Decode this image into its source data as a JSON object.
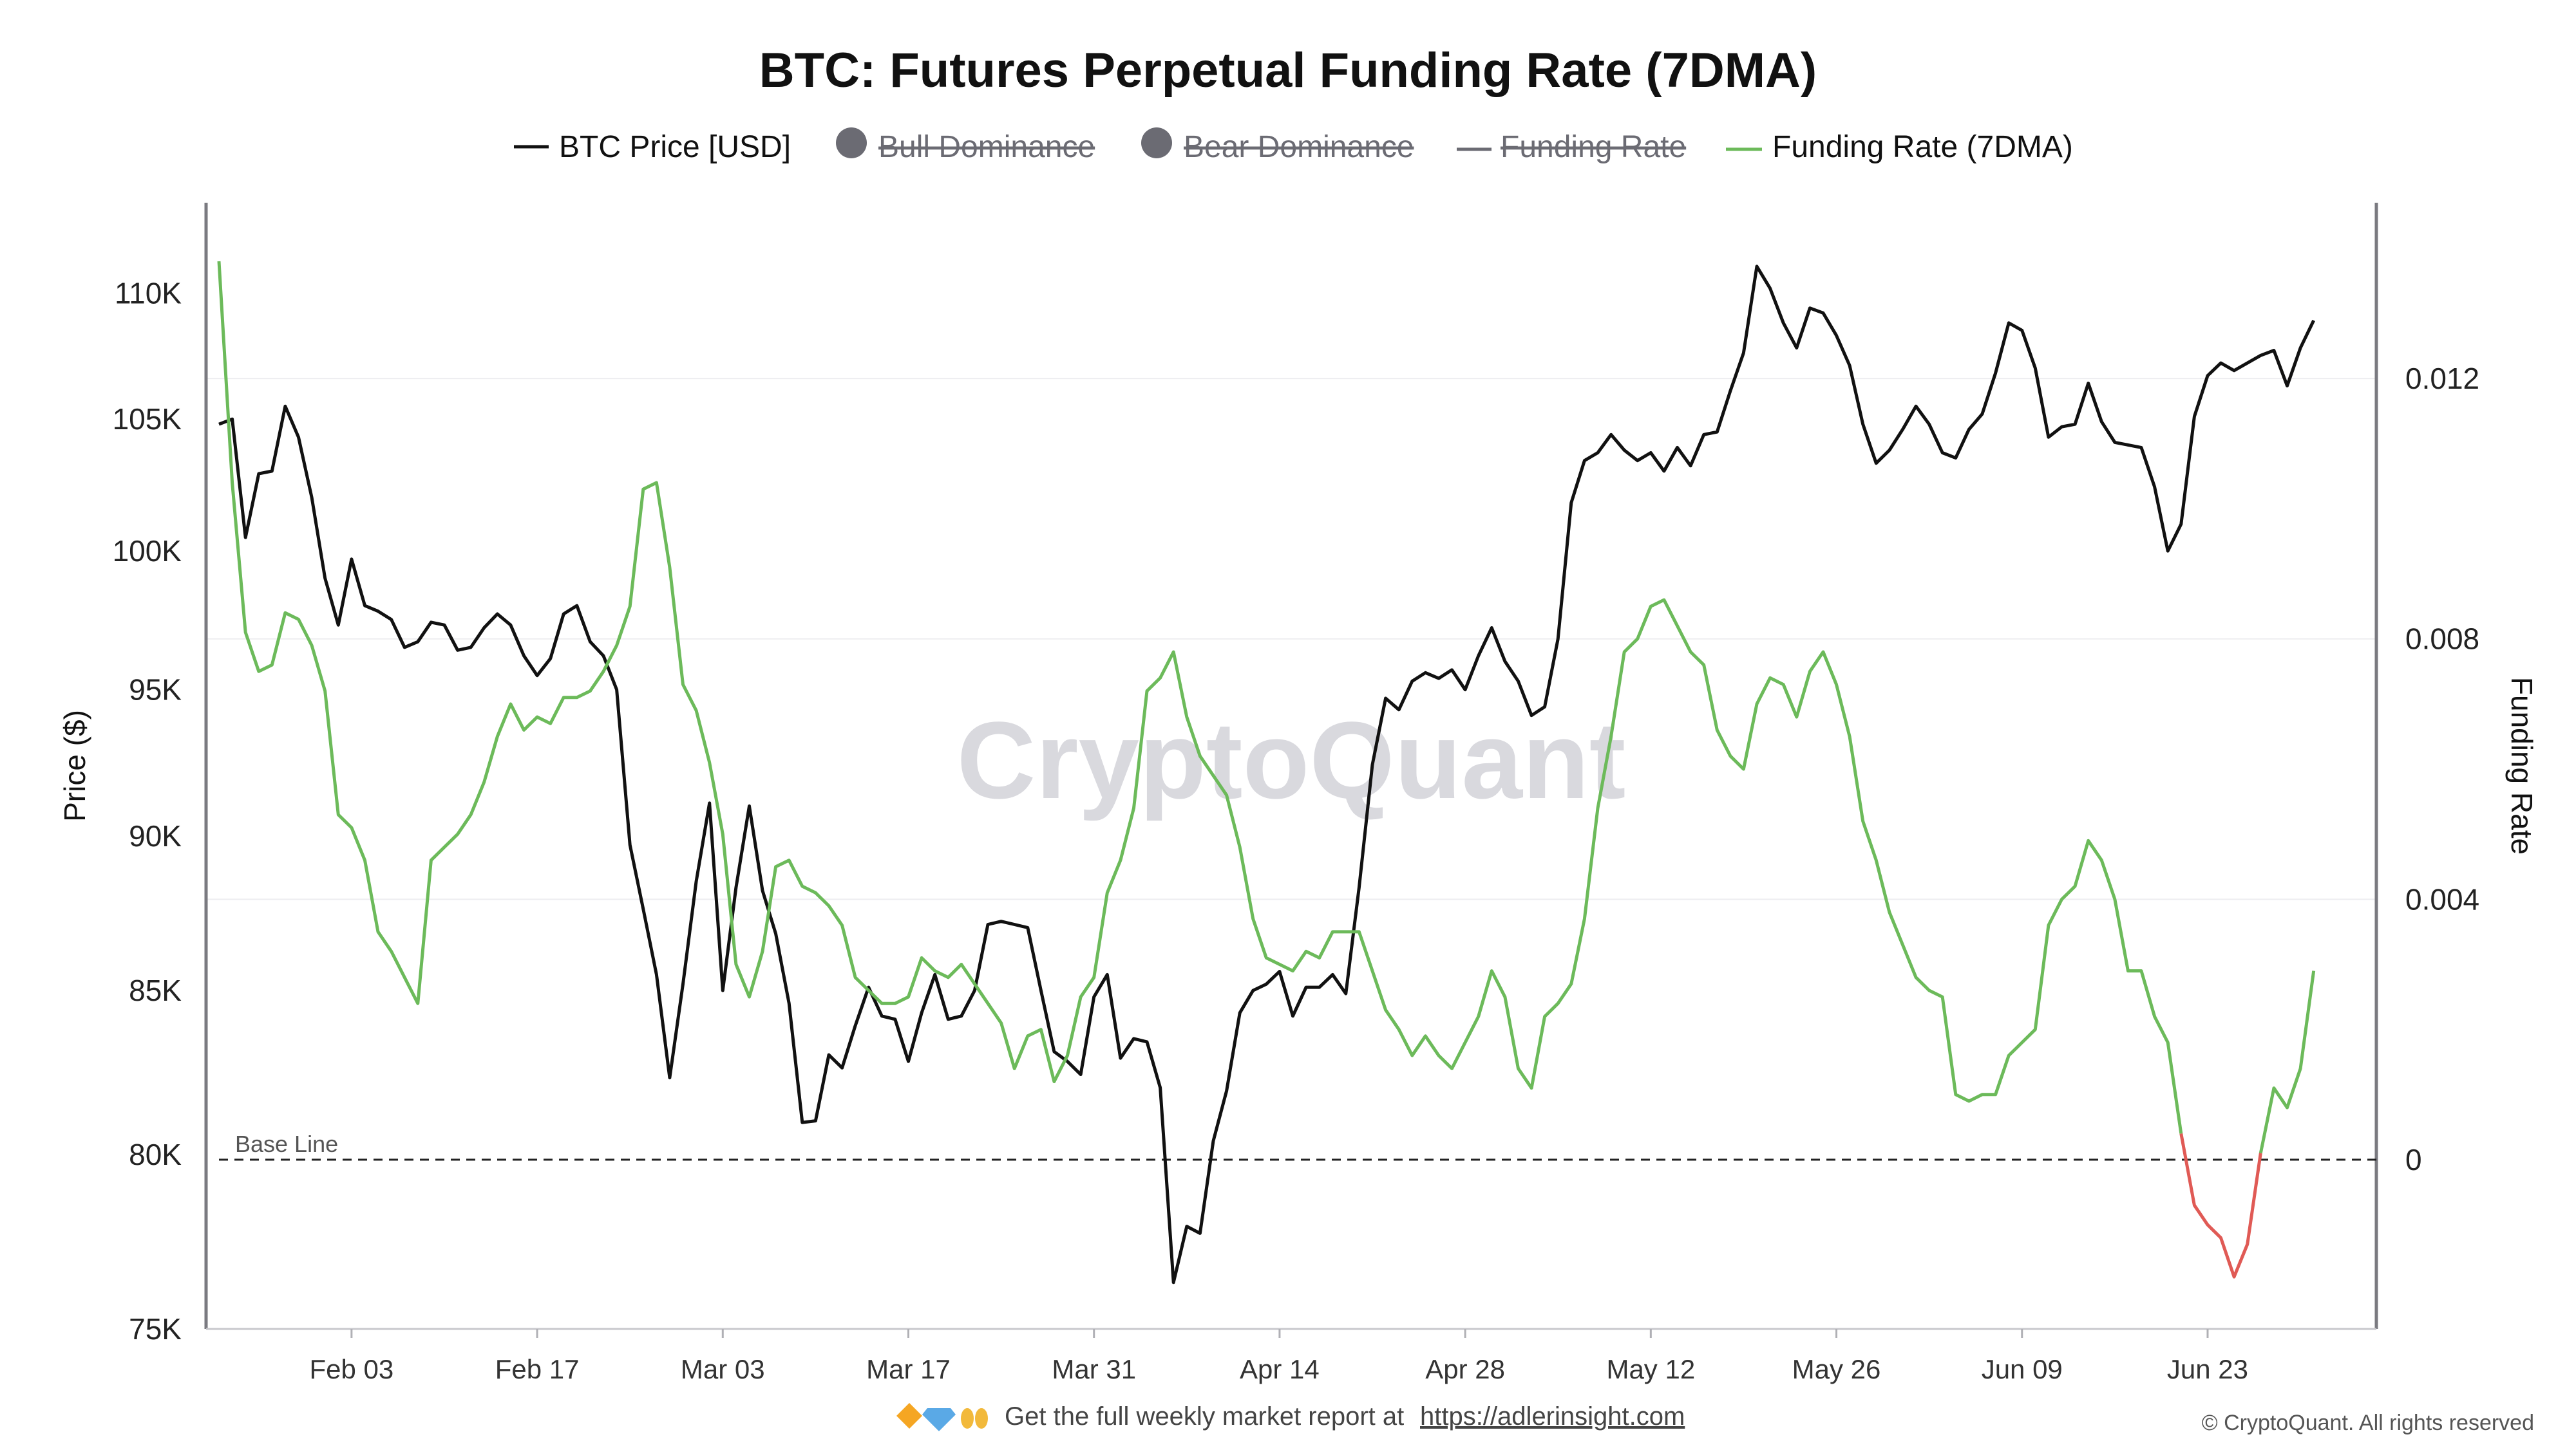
{
  "chart_data": {
    "type": "line",
    "title": "BTC: Futures Perpetual Funding Rate (7DMA)",
    "watermark": "CryptoQuant",
    "ylabel_left": "Price ($)",
    "ylabel_right": "Funding Rate",
    "left_axis": {
      "min": 75000,
      "max": 112000,
      "scale": "log",
      "ticks": [
        {
          "value": 75000,
          "label": "75K"
        },
        {
          "value": 80000,
          "label": "80K"
        },
        {
          "value": 85000,
          "label": "85K"
        },
        {
          "value": 90000,
          "label": "90K"
        },
        {
          "value": 95000,
          "label": "95K"
        },
        {
          "value": 100000,
          "label": "100K"
        },
        {
          "value": 105000,
          "label": "105K"
        },
        {
          "value": 110000,
          "label": "110K"
        }
      ]
    },
    "right_axis": {
      "min": -0.0026,
      "max": 0.0147,
      "ticks": [
        {
          "value": 0,
          "label": "0"
        },
        {
          "value": 0.004,
          "label": "0.004"
        },
        {
          "value": 0.008,
          "label": "0.008"
        },
        {
          "value": 0.012,
          "label": "0.012"
        }
      ]
    },
    "x_axis": {
      "start": "2025-01-24",
      "end": "2025-07-05",
      "ticks": [
        {
          "date": "2025-02-03",
          "label": "Feb 03"
        },
        {
          "date": "2025-02-17",
          "label": "Feb 17"
        },
        {
          "date": "2025-03-03",
          "label": "Mar 03"
        },
        {
          "date": "2025-03-17",
          "label": "Mar 17"
        },
        {
          "date": "2025-03-31",
          "label": "Mar 31"
        },
        {
          "date": "2025-04-14",
          "label": "Apr 14"
        },
        {
          "date": "2025-04-28",
          "label": "Apr 28"
        },
        {
          "date": "2025-05-12",
          "label": "May 12"
        },
        {
          "date": "2025-05-26",
          "label": "May 26"
        },
        {
          "date": "2025-06-09",
          "label": "Jun 09"
        },
        {
          "date": "2025-06-23",
          "label": "Jun 23"
        }
      ]
    },
    "legend": [
      {
        "name": "BTC Price [USD]",
        "marker": "line",
        "color": "#111111",
        "visible": true
      },
      {
        "name": "Bull Dominance",
        "marker": "dot",
        "color": "#6b6b73",
        "visible": false
      },
      {
        "name": "Bear Dominance",
        "marker": "dot",
        "color": "#6b6b73",
        "visible": false
      },
      {
        "name": "Funding Rate",
        "marker": "line",
        "color": "#6b6b73",
        "visible": false
      },
      {
        "name": "Funding Rate (7DMA)",
        "marker": "line",
        "color": "#6cba5a",
        "visible": true
      }
    ],
    "baseline": {
      "value": 0,
      "label": "Base Line"
    },
    "colors": {
      "price": "#111111",
      "funding_positive": "#6cba5a",
      "funding_negative": "#e05a55",
      "baseline": "#222222"
    },
    "series": [
      {
        "name": "BTC Price [USD]",
        "axis": "left",
        "x_start": "2025-01-24",
        "x_step_days": 1,
        "values": [
          104800,
          105000,
          100500,
          102900,
          103000,
          105500,
          104300,
          102000,
          99000,
          97300,
          99700,
          98000,
          97800,
          97500,
          96500,
          96700,
          97400,
          97300,
          96400,
          96500,
          97200,
          97700,
          97300,
          96200,
          95500,
          96100,
          97700,
          98000,
          96700,
          96200,
          95000,
          89700,
          87600,
          85500,
          82300,
          85200,
          88500,
          91100,
          85000,
          88300,
          91000,
          88200,
          86800,
          84600,
          80950,
          81000,
          83000,
          82600,
          83900,
          85100,
          84200,
          84100,
          82800,
          84300,
          85500,
          84100,
          84200,
          85000,
          87100,
          87200,
          87100,
          87000,
          85000,
          83100,
          82800,
          82400,
          84800,
          85500,
          82900,
          83500,
          83400,
          82000,
          76300,
          77900,
          77700,
          80400,
          81900,
          84300,
          85000,
          85200,
          85600,
          84200,
          85100,
          85100,
          85500,
          84900,
          88300,
          92400,
          94700,
          94300,
          95300,
          95600,
          95400,
          95700,
          95000,
          96200,
          97200,
          96000,
          95300,
          94100,
          94400,
          96800,
          101800,
          103400,
          103700,
          104400,
          103800,
          103400,
          103700,
          103000,
          103900,
          103200,
          104400,
          104500,
          106100,
          107600,
          111100,
          110200,
          108800,
          107800,
          109400,
          109200,
          108300,
          107100,
          104800,
          103300,
          103800,
          104600,
          105500,
          104800,
          103700,
          103500,
          104600,
          105200,
          106800,
          108800,
          108500,
          107000,
          104300,
          104700,
          104800,
          106400,
          104900,
          104100,
          104000,
          103900,
          102400,
          100000,
          101000,
          105100,
          106700,
          107200,
          106900,
          107200,
          107500,
          107700,
          106300,
          107800,
          108900
        ]
      },
      {
        "name": "Funding Rate (7DMA)",
        "axis": "right",
        "x_start": "2025-01-24",
        "x_step_days": 1,
        "values": [
          0.0138,
          0.0104,
          0.0081,
          0.0075,
          0.0076,
          0.0084,
          0.0083,
          0.0079,
          0.0072,
          0.0053,
          0.0051,
          0.0046,
          0.0035,
          0.0032,
          0.0028,
          0.0024,
          0.0046,
          0.0048,
          0.005,
          0.0053,
          0.0058,
          0.0065,
          0.007,
          0.0066,
          0.0068,
          0.0067,
          0.0071,
          0.0071,
          0.0072,
          0.0075,
          0.0079,
          0.0085,
          0.0103,
          0.0104,
          0.0091,
          0.0073,
          0.0069,
          0.0061,
          0.005,
          0.003,
          0.0025,
          0.0032,
          0.0045,
          0.0046,
          0.0042,
          0.0041,
          0.0039,
          0.0036,
          0.0028,
          0.0026,
          0.0024,
          0.0024,
          0.0025,
          0.0031,
          0.0029,
          0.0028,
          0.003,
          0.0027,
          0.0024,
          0.0021,
          0.0014,
          0.0019,
          0.002,
          0.0012,
          0.0016,
          0.0025,
          0.0028,
          0.0041,
          0.0046,
          0.0054,
          0.0072,
          0.0074,
          0.0078,
          0.0068,
          0.0062,
          0.0059,
          0.0056,
          0.0048,
          0.0037,
          0.0031,
          0.003,
          0.0029,
          0.0032,
          0.0031,
          0.0035,
          0.0035,
          0.0035,
          0.0029,
          0.0023,
          0.002,
          0.0016,
          0.0019,
          0.0016,
          0.0014,
          0.0018,
          0.0022,
          0.0029,
          0.0025,
          0.0014,
          0.0011,
          0.0022,
          0.0024,
          0.0027,
          0.0037,
          0.0054,
          0.0065,
          0.0078,
          0.008,
          0.0085,
          0.0086,
          0.0082,
          0.0078,
          0.0076,
          0.0066,
          0.0062,
          0.006,
          0.007,
          0.0074,
          0.0073,
          0.0068,
          0.0075,
          0.0078,
          0.0073,
          0.0065,
          0.0052,
          0.0046,
          0.0038,
          0.0033,
          0.0028,
          0.0026,
          0.0025,
          0.001,
          0.0009,
          0.001,
          0.001,
          0.0016,
          0.0018,
          0.002,
          0.0036,
          0.004,
          0.0042,
          0.0049,
          0.0046,
          0.004,
          0.0029,
          0.0029,
          0.0022,
          0.0018,
          0.0004,
          -0.0007,
          -0.001,
          -0.0012,
          -0.0018,
          -0.0013,
          0.0001,
          0.0011,
          0.0008,
          0.0014,
          0.0029
        ]
      }
    ]
  },
  "footer": {
    "text": "Get the full weekly market report at",
    "link": "https://adlerinsight.com",
    "copyright": "© CryptoQuant. All rights reserved"
  }
}
